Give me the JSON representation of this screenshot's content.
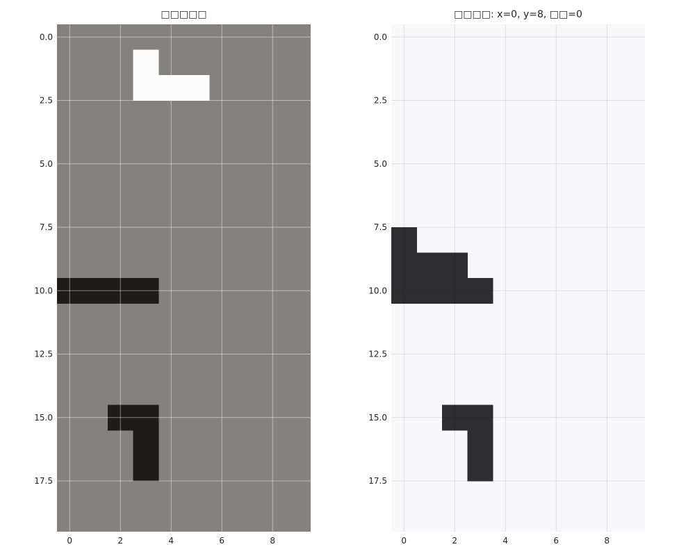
{
  "chart_data": [
    {
      "type": "heatmap",
      "title": "□□□□□",
      "background": "#858181",
      "grid": true,
      "xlim": [
        -0.5,
        9.5
      ],
      "ylim": [
        19.5,
        -0.5
      ],
      "xticks": [
        "0",
        "2",
        "4",
        "6",
        "8"
      ],
      "yticks": [
        "0.0",
        "2.5",
        "5.0",
        "7.5",
        "10.0",
        "12.5",
        "15.0",
        "17.5"
      ],
      "shapes": [
        {
          "color": "#fcfcfc",
          "cells": [
            [
              3,
              1
            ],
            [
              3,
              2
            ],
            [
              4,
              2
            ],
            [
              5,
              2
            ]
          ]
        },
        {
          "color": "#1e1b1b",
          "cells": [
            [
              0,
              10
            ],
            [
              1,
              10
            ],
            [
              2,
              10
            ],
            [
              3,
              10
            ]
          ]
        },
        {
          "color": "#1e1b1b",
          "cells": [
            [
              2,
              15
            ],
            [
              3,
              15
            ],
            [
              3,
              16
            ],
            [
              3,
              17
            ]
          ]
        }
      ]
    },
    {
      "type": "heatmap",
      "title": "□□□□: x=0, y=8, □□=0",
      "background": "#f8f8fa",
      "grid": true,
      "xlim": [
        -0.5,
        9.5
      ],
      "ylim": [
        19.5,
        -0.5
      ],
      "xticks": [
        "0",
        "2",
        "4",
        "6",
        "8"
      ],
      "yticks": [
        "0.0",
        "2.5",
        "5.0",
        "7.5",
        "10.0",
        "12.5",
        "15.0",
        "17.5"
      ],
      "shapes": [
        {
          "color": "#2e2e30",
          "cells": [
            [
              0,
              8
            ],
            [
              0,
              9
            ],
            [
              0,
              10
            ],
            [
              1,
              9
            ],
            [
              1,
              10
            ],
            [
              2,
              9
            ],
            [
              2,
              10
            ],
            [
              3,
              10
            ]
          ]
        },
        {
          "color": "#2e2e30",
          "cells": [
            [
              2,
              15
            ],
            [
              3,
              15
            ],
            [
              3,
              16
            ],
            [
              3,
              17
            ]
          ]
        }
      ]
    }
  ]
}
